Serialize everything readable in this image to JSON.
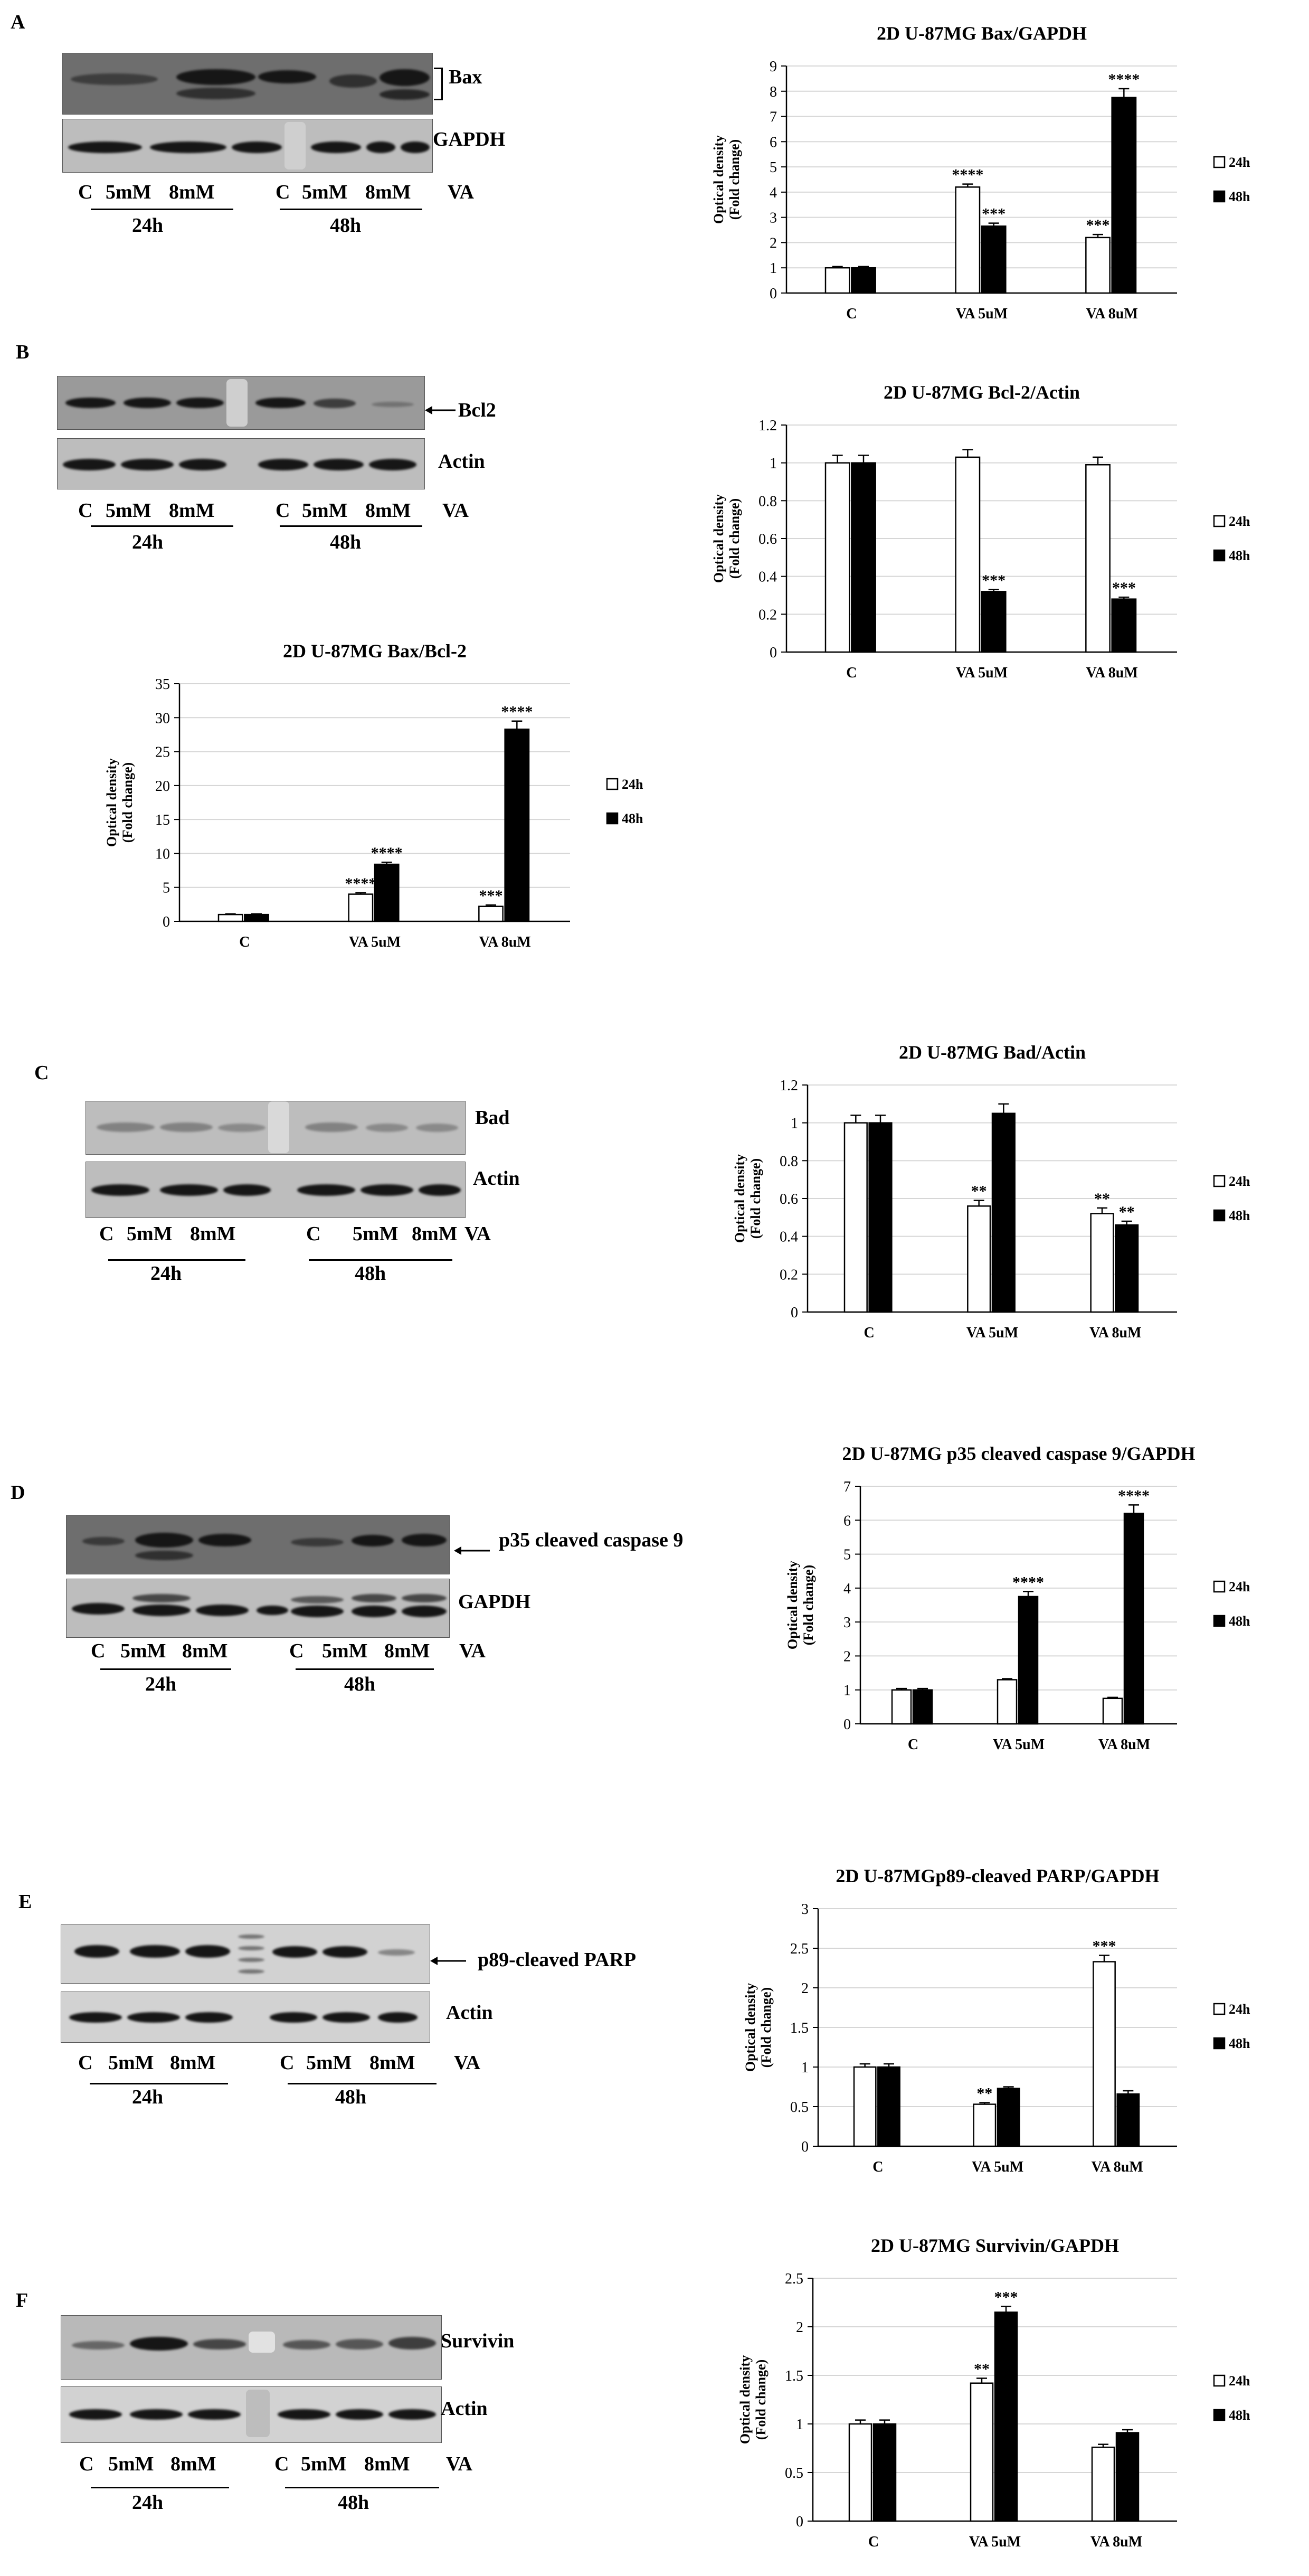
{
  "panels": {
    "A": {
      "letter": "A",
      "blot_labels": [
        "Bax",
        "GAPDH"
      ],
      "lanes": [
        "C",
        "5mM",
        "8mM",
        "C",
        "5mM",
        "8mM"
      ],
      "treatment": "VA",
      "times": [
        "24h",
        "48h"
      ]
    },
    "B": {
      "letter": "B",
      "blot_labels": [
        "Bcl2",
        "Actin"
      ],
      "lanes": [
        "C",
        "5mM",
        "8mM",
        "C",
        "5mM",
        "8mM"
      ],
      "treatment": "VA",
      "times": [
        "24h",
        "48h"
      ]
    },
    "C": {
      "letter": "C",
      "blot_labels": [
        "Bad",
        "Actin"
      ],
      "lanes": [
        "C",
        "5mM",
        "8mM",
        "C",
        "5mM",
        "8mM"
      ],
      "treatment": "VA",
      "times": [
        "24h",
        "48h"
      ]
    },
    "D": {
      "letter": "D",
      "blot_labels": [
        "p35 cleaved caspase 9",
        "GAPDH"
      ],
      "lanes": [
        "C",
        "5mM",
        "8mM",
        "C",
        "5mM",
        "8mM"
      ],
      "treatment": "VA",
      "times": [
        "24h",
        "48h"
      ]
    },
    "E": {
      "letter": "E",
      "blot_labels": [
        "p89-cleaved PARP",
        "Actin"
      ],
      "lanes": [
        "C",
        "5mM",
        "8mM",
        "C",
        "5mM",
        "8mM"
      ],
      "treatment": "VA",
      "times": [
        "24h",
        "48h"
      ]
    },
    "F": {
      "letter": "F",
      "blot_labels": [
        "Survivin",
        "Actin"
      ],
      "lanes": [
        "C",
        "5mM",
        "8mM",
        "C",
        "5mM",
        "8mM"
      ],
      "treatment": "VA",
      "times": [
        "24h",
        "48h"
      ]
    }
  },
  "chart_data": [
    {
      "id": "bax",
      "type": "bar",
      "title": "2D U-87MG Bax/GAPDH",
      "ylabel": [
        "Optical density",
        "(Fold change)"
      ],
      "categories": [
        "C",
        "VA 5uM",
        "VA 8uM"
      ],
      "ylim": [
        0,
        9
      ],
      "yticks": [
        0,
        1,
        2,
        3,
        4,
        5,
        6,
        7,
        8,
        9
      ],
      "series": [
        {
          "name": "24h",
          "values": [
            1.0,
            4.2,
            2.2
          ],
          "errors": [
            0.05,
            0.12,
            0.12
          ],
          "sig": [
            "",
            "****",
            "***"
          ]
        },
        {
          "name": "48h",
          "values": [
            1.0,
            2.65,
            7.75
          ],
          "errors": [
            0.05,
            0.12,
            0.35
          ],
          "sig": [
            "",
            "***",
            "****"
          ]
        }
      ]
    },
    {
      "id": "bcl2",
      "type": "bar",
      "title": "2D U-87MG Bcl-2/Actin",
      "ylabel": [
        "Optical density",
        "(Fold change)"
      ],
      "categories": [
        "C",
        "VA 5uM",
        "VA 8uM"
      ],
      "ylim": [
        0,
        1.2
      ],
      "yticks": [
        0,
        0.2,
        0.4,
        0.6,
        0.8,
        1,
        1.2
      ],
      "series": [
        {
          "name": "24h",
          "values": [
            1.0,
            1.03,
            0.99
          ],
          "errors": [
            0.04,
            0.04,
            0.04
          ],
          "sig": [
            "",
            "",
            ""
          ]
        },
        {
          "name": "48h",
          "values": [
            1.0,
            0.32,
            0.28
          ],
          "errors": [
            0.04,
            0.01,
            0.01
          ],
          "sig": [
            "",
            "***",
            "***"
          ]
        }
      ]
    },
    {
      "id": "baxbcl2",
      "type": "bar",
      "title": "2D U-87MG Bax/Bcl-2",
      "ylabel": [
        "Optical density",
        "(Fold change)"
      ],
      "categories": [
        "C",
        "VA 5uM",
        "VA 8uM"
      ],
      "ylim": [
        0,
        35
      ],
      "yticks": [
        0,
        5,
        10,
        15,
        20,
        25,
        30,
        35
      ],
      "series": [
        {
          "name": "24h",
          "values": [
            1.0,
            4.0,
            2.2
          ],
          "errors": [
            0.1,
            0.2,
            0.2
          ],
          "sig": [
            "",
            "****",
            "***"
          ]
        },
        {
          "name": "48h",
          "values": [
            1.0,
            8.4,
            28.3
          ],
          "errors": [
            0.1,
            0.3,
            1.2
          ],
          "sig": [
            "",
            "****",
            "****"
          ]
        }
      ]
    },
    {
      "id": "bad",
      "type": "bar",
      "title": "2D U-87MG Bad/Actin",
      "ylabel": [
        "Optical density",
        "(Fold change)"
      ],
      "categories": [
        "C",
        "VA 5uM",
        "VA 8uM"
      ],
      "ylim": [
        0,
        1.2
      ],
      "yticks": [
        0,
        0.2,
        0.4,
        0.6,
        0.8,
        1,
        1.2
      ],
      "series": [
        {
          "name": "24h",
          "values": [
            1.0,
            0.56,
            0.52
          ],
          "errors": [
            0.04,
            0.03,
            0.03
          ],
          "sig": [
            "",
            "**",
            "**"
          ]
        },
        {
          "name": "48h",
          "values": [
            1.0,
            1.05,
            0.46
          ],
          "errors": [
            0.04,
            0.05,
            0.02
          ],
          "sig": [
            "",
            "",
            "**"
          ]
        }
      ]
    },
    {
      "id": "casp9",
      "type": "bar",
      "title": "2D U-87MG p35 cleaved caspase 9/GAPDH",
      "ylabel": [
        "Optical density",
        "(Fold change)"
      ],
      "categories": [
        "C",
        "VA 5uM",
        "VA 8uM"
      ],
      "ylim": [
        0,
        7
      ],
      "yticks": [
        0,
        1,
        2,
        3,
        4,
        5,
        6,
        7
      ],
      "series": [
        {
          "name": "24h",
          "values": [
            1.0,
            1.3,
            0.75
          ],
          "errors": [
            0.04,
            0.03,
            0.03
          ],
          "sig": [
            "",
            "",
            ""
          ]
        },
        {
          "name": "48h",
          "values": [
            1.0,
            3.75,
            6.2
          ],
          "errors": [
            0.04,
            0.15,
            0.25
          ],
          "sig": [
            "",
            "****",
            "****"
          ]
        }
      ]
    },
    {
      "id": "parp",
      "type": "bar",
      "title": "2D U-87MGp89-cleaved PARP/GAPDH",
      "ylabel": [
        "Optical density",
        "(Fold change)"
      ],
      "categories": [
        "C",
        "VA 5uM",
        "VA 8uM"
      ],
      "ylim": [
        0,
        3
      ],
      "yticks": [
        0,
        0.5,
        1,
        1.5,
        2,
        2.5,
        3
      ],
      "series": [
        {
          "name": "24h",
          "values": [
            1.0,
            0.53,
            2.33
          ],
          "errors": [
            0.04,
            0.02,
            0.08
          ],
          "sig": [
            "",
            "**",
            "***"
          ]
        },
        {
          "name": "48h",
          "values": [
            1.0,
            0.73,
            0.66
          ],
          "errors": [
            0.04,
            0.02,
            0.04
          ],
          "sig": [
            "",
            "",
            ""
          ]
        }
      ]
    },
    {
      "id": "survivin",
      "type": "bar",
      "title": "2D U-87MG Survivin/GAPDH",
      "ylabel": [
        "Optical density",
        "(Fold change)"
      ],
      "categories": [
        "C",
        "VA 5uM",
        "VA 8uM"
      ],
      "ylim": [
        0,
        2.5
      ],
      "yticks": [
        0,
        0.5,
        1,
        1.5,
        2,
        2.5
      ],
      "series": [
        {
          "name": "24h",
          "values": [
            1.0,
            1.42,
            0.76
          ],
          "errors": [
            0.04,
            0.05,
            0.03
          ],
          "sig": [
            "",
            "**",
            ""
          ]
        },
        {
          "name": "48h",
          "values": [
            1.0,
            2.15,
            0.91
          ],
          "errors": [
            0.04,
            0.06,
            0.03
          ],
          "sig": [
            "",
            "***",
            ""
          ]
        }
      ]
    }
  ]
}
